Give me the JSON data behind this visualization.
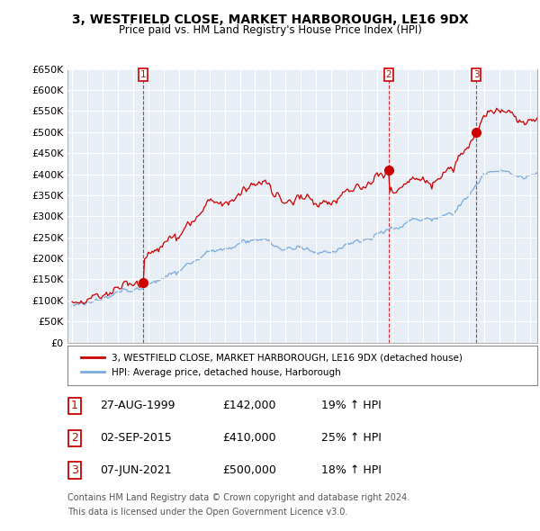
{
  "title": "3, WESTFIELD CLOSE, MARKET HARBOROUGH, LE16 9DX",
  "subtitle": "Price paid vs. HM Land Registry's House Price Index (HPI)",
  "legend_label_red": "3, WESTFIELD CLOSE, MARKET HARBOROUGH, LE16 9DX (detached house)",
  "legend_label_blue": "HPI: Average price, detached house, Harborough",
  "footer_line1": "Contains HM Land Registry data © Crown copyright and database right 2024.",
  "footer_line2": "This data is licensed under the Open Government Licence v3.0.",
  "transactions": [
    {
      "num": 1,
      "date": "27-AUG-1999",
      "price": 142000,
      "pct": "19%",
      "dir": "↑"
    },
    {
      "num": 2,
      "date": "02-SEP-2015",
      "price": 410000,
      "pct": "25%",
      "dir": "↑"
    },
    {
      "num": 3,
      "date": "07-JUN-2021",
      "price": 500000,
      "pct": "18%",
      "dir": "↑"
    }
  ],
  "ylim": [
    0,
    650000
  ],
  "yticks": [
    0,
    50000,
    100000,
    150000,
    200000,
    250000,
    300000,
    350000,
    400000,
    450000,
    500000,
    550000,
    600000,
    650000
  ],
  "xlim_start": 1994.7,
  "xlim_end": 2025.5,
  "red_color": "#cc0000",
  "blue_color": "#7aaadd",
  "chart_bg": "#e8eef5",
  "grid_color": "#ffffff",
  "background_color": "#ffffff"
}
